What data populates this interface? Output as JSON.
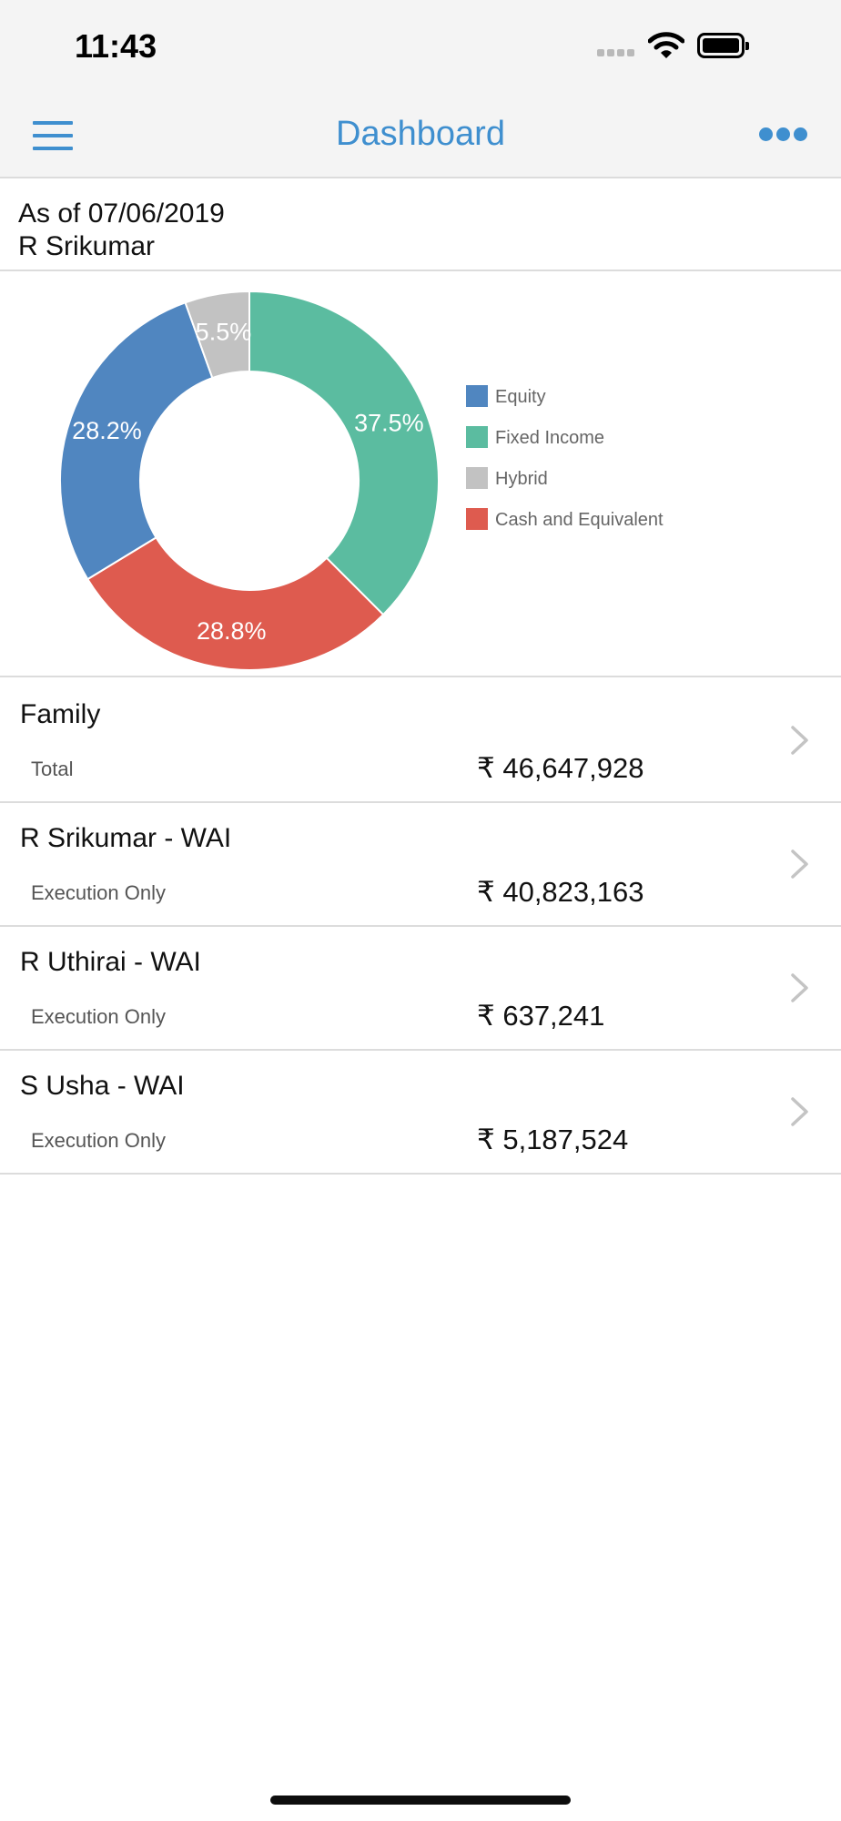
{
  "status_bar": {
    "time": "11:43"
  },
  "nav": {
    "title": "Dashboard",
    "menu_icon": "hamburger-menu-icon",
    "more_icon": "more-dots-icon"
  },
  "header": {
    "as_of": "As of 07/06/2019",
    "client_name": "R Srikumar"
  },
  "chart_data": {
    "type": "pie",
    "donut": true,
    "legend_position": "right",
    "categories": [
      "Equity",
      "Fixed Income",
      "Hybrid",
      "Cash and Equivalent"
    ],
    "values": [
      28.2,
      37.5,
      5.5,
      28.8
    ],
    "labels": [
      "28.2%",
      "37.5%",
      "5.5%",
      "28.8%"
    ],
    "colors": [
      "#5086c0",
      "#5bbca0",
      "#c2c2c2",
      "#de5b4f"
    ],
    "start_order": [
      "Fixed Income",
      "Cash and Equivalent",
      "Equity",
      "Hybrid"
    ]
  },
  "accounts": [
    {
      "name": "Family",
      "type": "Total",
      "value": "₹ 46,647,928"
    },
    {
      "name": "R Srikumar - WAI",
      "type": "Execution Only",
      "value": "₹ 40,823,163"
    },
    {
      "name": "R Uthirai - WAI",
      "type": "Execution Only",
      "value": "₹ 637,241"
    },
    {
      "name": "S Usha - WAI",
      "type": "Execution Only",
      "value": "₹ 5,187,524"
    }
  ]
}
